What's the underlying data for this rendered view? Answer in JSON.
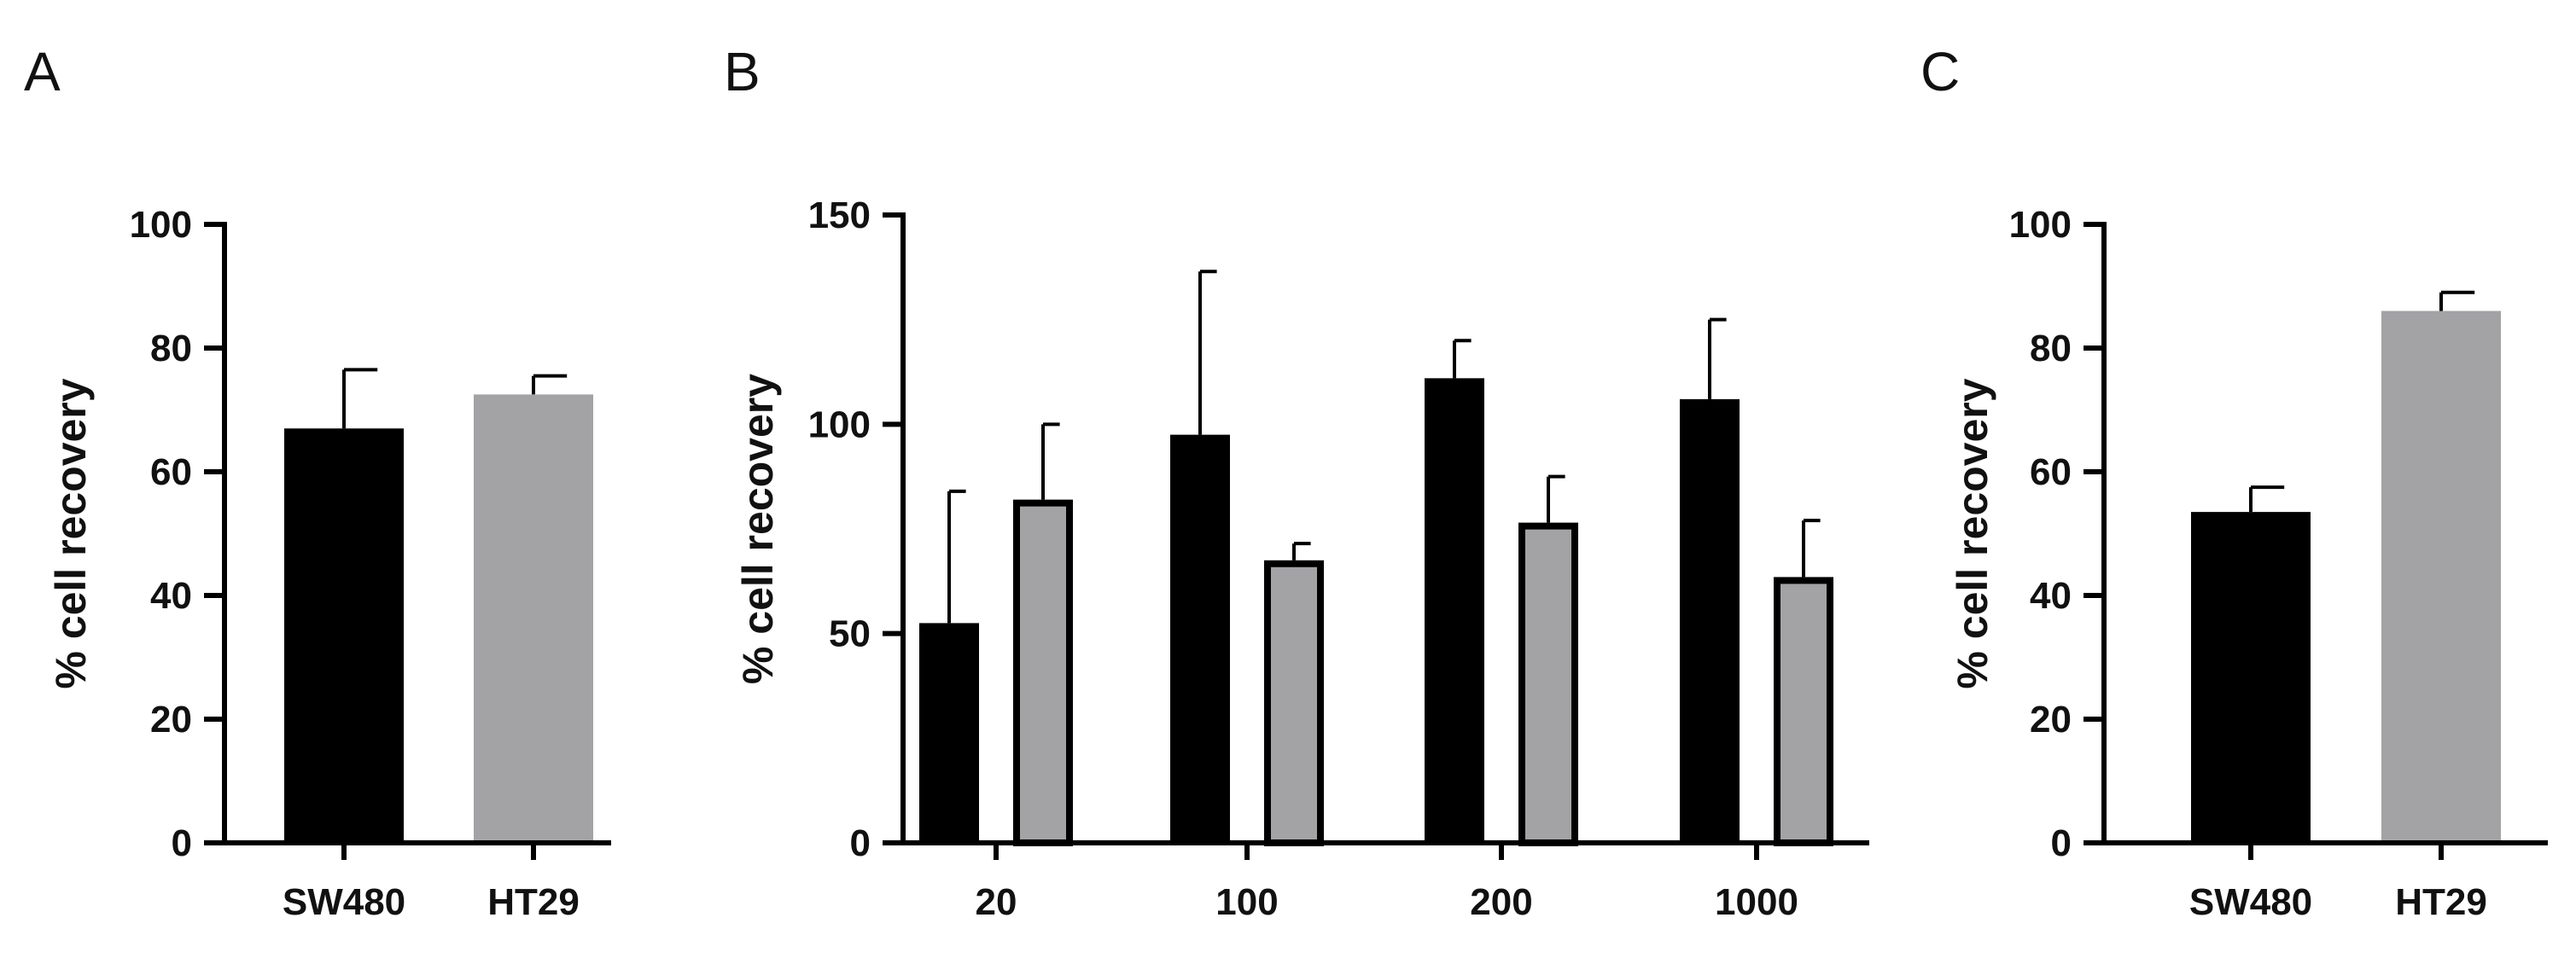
{
  "chart_data": [
    {
      "panel": "A",
      "type": "bar",
      "title": "",
      "xlabel": "",
      "ylabel": "% cell recovery",
      "ylim": [
        0,
        100
      ],
      "yticks": [
        0,
        20,
        40,
        60,
        80,
        100
      ],
      "grid": false,
      "categories": [
        "SW480",
        "HT29"
      ],
      "values": [
        67,
        72.5
      ],
      "errors": [
        9.5,
        3
      ],
      "colors": [
        "#000000",
        "#a3a3a6"
      ]
    },
    {
      "panel": "B",
      "type": "bar",
      "title": "",
      "xlabel": "",
      "ylabel": "% cell recovery",
      "ylim": [
        0,
        150
      ],
      "yticks": [
        0,
        50,
        100,
        150
      ],
      "grid": false,
      "categories": [
        "20",
        "100",
        "200",
        "1000"
      ],
      "series": [
        {
          "values": [
            52.5,
            97.5,
            111,
            106
          ],
          "errors": [
            31.5,
            39,
            9,
            19
          ],
          "color": "#000000"
        },
        {
          "values": [
            82,
            67.5,
            76.5,
            63.5
          ],
          "errors": [
            18,
            4,
            11,
            13.5
          ],
          "color": "#a3a3a6",
          "outline": "#000000"
        }
      ]
    },
    {
      "panel": "C",
      "type": "bar",
      "title": "",
      "xlabel": "",
      "ylabel": "% cell recovery",
      "ylim": [
        0,
        100
      ],
      "yticks": [
        0,
        20,
        40,
        60,
        80,
        100
      ],
      "grid": false,
      "categories": [
        "SW480",
        "HT29"
      ],
      "values": [
        53.5,
        86
      ],
      "errors": [
        4,
        3
      ],
      "colors": [
        "#000000",
        "#a3a3a6"
      ]
    }
  ]
}
